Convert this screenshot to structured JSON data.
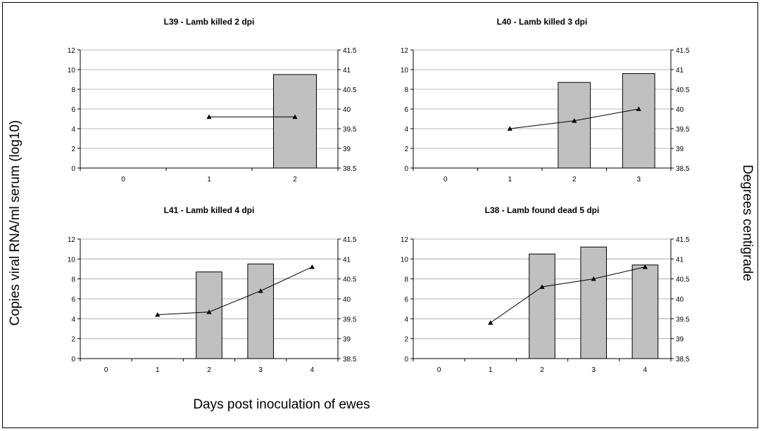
{
  "figure": {
    "y_left_label": "Copies viral RNA/ml serum (log10)",
    "y_right_label": "Degrees centigrade",
    "x_label": "Days post inoculation of ewes"
  },
  "chart_data": [
    {
      "type": "bar",
      "title": "L39 - Lamb killed 2 dpi",
      "categories": [
        "0",
        "1",
        "2"
      ],
      "series": [
        {
          "values": [
            0,
            0,
            9.5
          ],
          "axis": "left"
        },
        {
          "type": "line",
          "values": [
            null,
            39.8,
            39.8
          ],
          "axis": "right"
        }
      ],
      "ylim": [
        0,
        12
      ],
      "y_ticks": [
        "0",
        "2",
        "4",
        "6",
        "8",
        "10",
        "12"
      ],
      "y2lim": [
        38.5,
        41.5
      ],
      "y2_ticks": [
        "38.5",
        "39",
        "39.5",
        "40",
        "40.5",
        "41",
        "41.5"
      ],
      "grid": true,
      "colors": {
        "bar": "#c0c0c0",
        "line": "#000000"
      }
    },
    {
      "type": "bar",
      "title": "L40 - Lamb killed 3 dpi",
      "categories": [
        "0",
        "1",
        "2",
        "3"
      ],
      "series": [
        {
          "values": [
            0,
            0,
            8.7,
            9.6
          ],
          "axis": "left"
        },
        {
          "type": "line",
          "values": [
            null,
            39.5,
            39.7,
            40.0
          ],
          "axis": "right"
        }
      ],
      "ylim": [
        0,
        12
      ],
      "y_ticks": [
        "0",
        "2",
        "4",
        "6",
        "8",
        "10",
        "12"
      ],
      "y2lim": [
        38.5,
        41.5
      ],
      "y2_ticks": [
        "38.5",
        "39",
        "39.5",
        "40",
        "40.5",
        "41",
        "41.5"
      ],
      "grid": true,
      "colors": {
        "bar": "#c0c0c0",
        "line": "#000000"
      }
    },
    {
      "type": "bar",
      "title": "L41 - Lamb killed 4 dpi",
      "categories": [
        "0",
        "1",
        "2",
        "3",
        "4"
      ],
      "series": [
        {
          "values": [
            0,
            0,
            8.7,
            9.5,
            null
          ],
          "axis": "left"
        },
        {
          "type": "line",
          "values": [
            null,
            39.6,
            39.67,
            40.2,
            40.8
          ],
          "axis": "right"
        }
      ],
      "ylim": [
        0,
        12
      ],
      "y_ticks": [
        "0",
        "2",
        "4",
        "6",
        "8",
        "10",
        "12"
      ],
      "y2lim": [
        38.5,
        41.5
      ],
      "y2_ticks": [
        "38.5",
        "39",
        "39.5",
        "40",
        "40.5",
        "41",
        "41.5"
      ],
      "grid": true,
      "colors": {
        "bar": "#c0c0c0",
        "line": "#000000"
      }
    },
    {
      "type": "bar",
      "title": "L38 - Lamb found dead 5 dpi",
      "categories": [
        "0",
        "1",
        "2",
        "3",
        "4"
      ],
      "series": [
        {
          "values": [
            0,
            0,
            10.5,
            11.2,
            9.4
          ],
          "axis": "left"
        },
        {
          "type": "line",
          "values": [
            null,
            39.4,
            40.3,
            40.5,
            40.8
          ],
          "axis": "right"
        }
      ],
      "ylim": [
        0,
        12
      ],
      "y_ticks": [
        "0",
        "2",
        "4",
        "6",
        "8",
        "10",
        "12"
      ],
      "y2lim": [
        38.5,
        41.5
      ],
      "y2_ticks": [
        "38.5",
        "39",
        "39.5",
        "40",
        "40.5",
        "41",
        "41.5"
      ],
      "grid": true,
      "colors": {
        "bar": "#c0c0c0",
        "line": "#000000"
      }
    }
  ]
}
